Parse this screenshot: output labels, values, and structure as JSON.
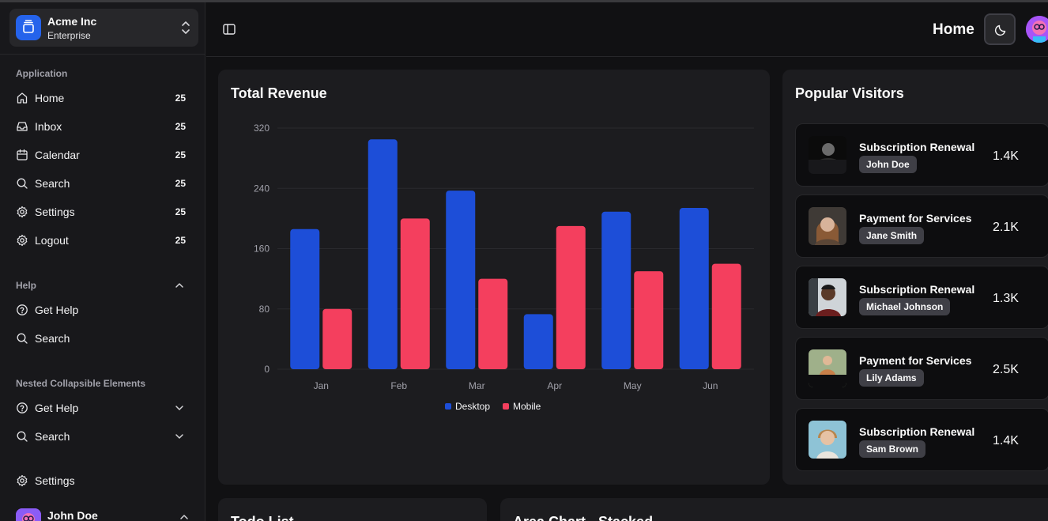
{
  "team": {
    "name": "Acme Inc",
    "plan": "Enterprise"
  },
  "sidebar": {
    "group_application": "Application",
    "items": [
      {
        "label": "Home",
        "count": "25",
        "icon": "home-icon"
      },
      {
        "label": "Inbox",
        "count": "25",
        "icon": "inbox-icon"
      },
      {
        "label": "Calendar",
        "count": "25",
        "icon": "calendar-icon"
      },
      {
        "label": "Search",
        "count": "25",
        "icon": "search-icon"
      },
      {
        "label": "Settings",
        "count": "25",
        "icon": "gear-icon"
      },
      {
        "label": "Logout",
        "count": "25",
        "icon": "gear-icon"
      }
    ],
    "group_help": "Help",
    "help_items": [
      {
        "label": "Get Help",
        "icon": "help-circle-icon"
      },
      {
        "label": "Search",
        "icon": "search-icon"
      }
    ],
    "group_nested": "Nested Collapsible Elements",
    "nested_items": [
      {
        "label": "Get Help",
        "icon": "help-circle-icon"
      },
      {
        "label": "Search",
        "icon": "search-icon"
      }
    ],
    "settings_label": "Settings",
    "user_name": "John Doe"
  },
  "header": {
    "title": "Home"
  },
  "revenue": {
    "title": "Total Revenue"
  },
  "chart_data": {
    "type": "bar",
    "title": "Total Revenue",
    "categories": [
      "Jan",
      "Feb",
      "Mar",
      "Apr",
      "May",
      "Jun"
    ],
    "series": [
      {
        "name": "Desktop",
        "color": "#1d4ed8",
        "values": [
          186,
          305,
          237,
          73,
          209,
          214
        ]
      },
      {
        "name": "Mobile",
        "color": "#f43f5e",
        "values": [
          80,
          200,
          120,
          190,
          130,
          140
        ]
      }
    ],
    "yticks": [
      0,
      80,
      160,
      240,
      320
    ],
    "ylim": [
      0,
      320
    ],
    "grid": true,
    "legend_position": "bottom"
  },
  "visitors": {
    "title": "Popular Visitors",
    "items": [
      {
        "title": "Subscription Renewal",
        "name": "John Doe",
        "amount": "1.4K"
      },
      {
        "title": "Payment for Services",
        "name": "Jane Smith",
        "amount": "2.1K"
      },
      {
        "title": "Subscription Renewal",
        "name": "Michael Johnson",
        "amount": "1.3K"
      },
      {
        "title": "Payment for Services",
        "name": "Lily Adams",
        "amount": "2.5K"
      },
      {
        "title": "Subscription Renewal",
        "name": "Sam Brown",
        "amount": "1.4K"
      }
    ]
  },
  "todo": {
    "title": "Todo List"
  },
  "area": {
    "title": "Area Chart - Stacked"
  }
}
